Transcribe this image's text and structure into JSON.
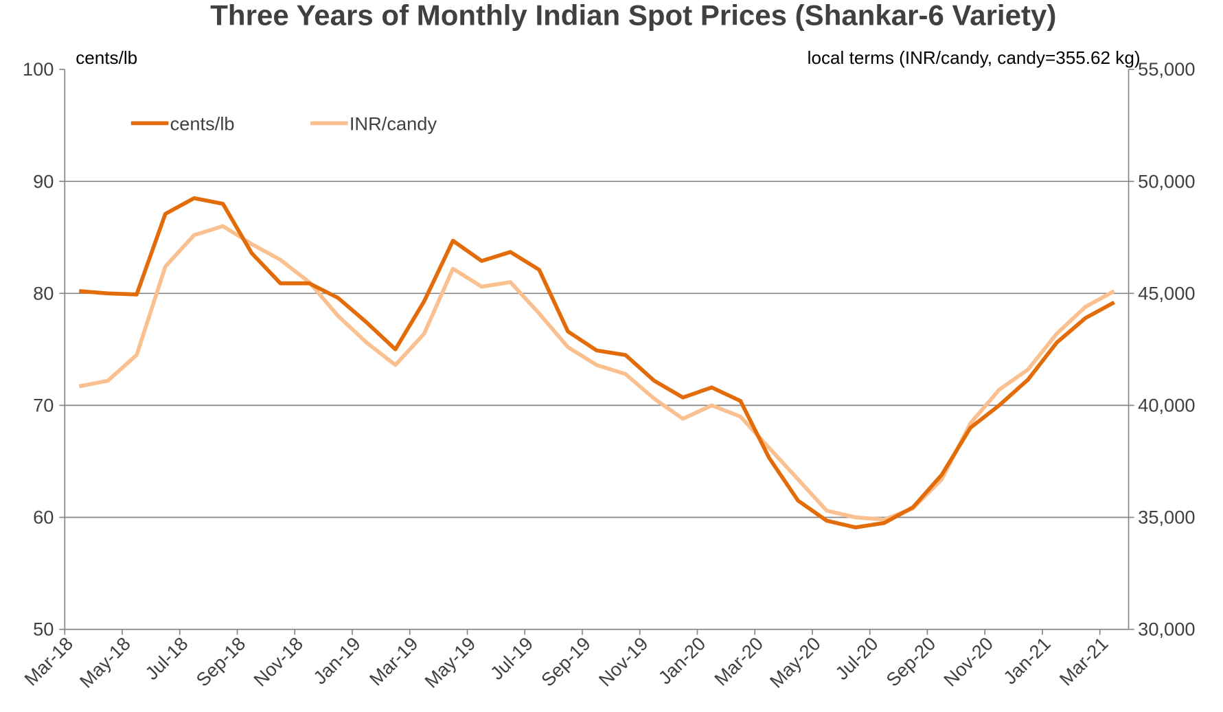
{
  "chart_data": {
    "type": "line",
    "title": "Three Years of Monthly Indian Spot Prices (Shankar-6 Variety)",
    "y_label": "cents/lb",
    "y2_label": "local terms (INR/candy, candy=355.62 kg)",
    "categories": [
      "Mar-18",
      null,
      "May-18",
      null,
      "Jul-18",
      null,
      "Sep-18",
      null,
      "Nov-18",
      null,
      "Jan-19",
      null,
      "Mar-19",
      null,
      "May-19",
      null,
      "Jul-19",
      null,
      "Sep-19",
      null,
      "Nov-19",
      null,
      "Jan-20",
      null,
      "Mar-20",
      null,
      "May-20",
      null,
      "Jul-20",
      null,
      "Sep-20",
      null,
      "Nov-20",
      null,
      "Jan-21",
      null,
      "Mar-21"
    ],
    "series": [
      {
        "name": "cents/lb",
        "color": "#e36c0a",
        "values": [
          80.2,
          80.0,
          79.9,
          87.1,
          88.5,
          88.0,
          83.6,
          80.9,
          80.9,
          79.6,
          77.4,
          75.0,
          79.3,
          84.7,
          82.9,
          83.7,
          82.1,
          76.6,
          74.9,
          74.5,
          72.2,
          70.7,
          71.6,
          70.4,
          65.3,
          61.5,
          59.7,
          59.1,
          59.5,
          60.9,
          63.8,
          68.0,
          70.0,
          72.3,
          75.6,
          77.8,
          79.2
        ]
      },
      {
        "name": "INR/candy",
        "color": "#fac090",
        "axis": "y2",
        "values": [
          40850,
          41100,
          42250,
          46200,
          47600,
          48000,
          47200,
          46500,
          45500,
          44000,
          42800,
          41800,
          43200,
          46100,
          45300,
          45500,
          44100,
          42600,
          41800,
          41400,
          40300,
          39400,
          40000,
          39500,
          38100,
          36700,
          35300,
          35000,
          34900,
          35400,
          36700,
          39200,
          40700,
          41600,
          43200,
          44400,
          45100
        ]
      }
    ],
    "ylim": [
      50,
      100
    ],
    "yticks": [
      50,
      60,
      70,
      80,
      90,
      100
    ],
    "y2lim": [
      30000,
      55000
    ],
    "y2ticks": [
      {
        "value": 30000,
        "label": "30,000"
      },
      {
        "value": 35000,
        "label": "35,000"
      },
      {
        "value": 40000,
        "label": "40,000"
      },
      {
        "value": 45000,
        "label": "45,000"
      },
      {
        "value": 50000,
        "label": "50,000"
      },
      {
        "value": 55000,
        "label": "55,000"
      }
    ],
    "grid": true,
    "legend": "top-left"
  }
}
